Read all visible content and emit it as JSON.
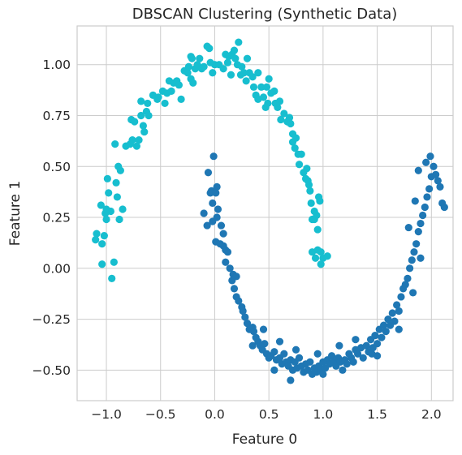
{
  "chart_data": {
    "type": "scatter",
    "title": "DBSCAN Clustering (Synthetic Data)",
    "xlabel": "Feature 0",
    "ylabel": "Feature 1",
    "xlim": [
      -1.27,
      2.2
    ],
    "ylim": [
      -0.65,
      1.19
    ],
    "xticks": [
      -1.0,
      -0.5,
      0.0,
      0.5,
      1.0,
      1.5,
      2.0
    ],
    "xtick_labels": [
      "−1.0",
      "−0.5",
      "0.0",
      "0.5",
      "1.0",
      "1.5",
      "2.0"
    ],
    "yticks": [
      -0.5,
      -0.25,
      0.0,
      0.25,
      0.5,
      0.75,
      1.0
    ],
    "ytick_labels": [
      "−0.50",
      "−0.25",
      "0.00",
      "0.25",
      "0.50",
      "0.75",
      "1.00"
    ],
    "grid": true,
    "colors": {
      "cluster_0": "#1f77b4",
      "cluster_1": "#17becf"
    },
    "series": [
      {
        "color": "#17becf",
        "points": [
          [
            -1.1,
            0.14
          ],
          [
            -1.09,
            0.17
          ],
          [
            -1.05,
            0.31
          ],
          [
            -1.04,
            0.12
          ],
          [
            -1.04,
            0.02
          ],
          [
            -1.02,
            0.16
          ],
          [
            -1.01,
            0.27
          ],
          [
            -1.0,
            0.29
          ],
          [
            -1.0,
            0.24
          ],
          [
            -0.99,
            0.44
          ],
          [
            -0.98,
            0.37
          ],
          [
            -0.96,
            0.28
          ],
          [
            -0.95,
            -0.05
          ],
          [
            -0.93,
            0.03
          ],
          [
            -0.92,
            0.61
          ],
          [
            -0.91,
            0.42
          ],
          [
            -0.9,
            0.35
          ],
          [
            -0.89,
            0.5
          ],
          [
            -0.88,
            0.24
          ],
          [
            -0.87,
            0.48
          ],
          [
            -0.85,
            0.29
          ],
          [
            -0.82,
            0.6
          ],
          [
            -0.78,
            0.61
          ],
          [
            -0.76,
            0.63
          ],
          [
            -0.77,
            0.73
          ],
          [
            -0.74,
            0.72
          ],
          [
            -0.72,
            0.6
          ],
          [
            -0.7,
            0.63
          ],
          [
            -0.68,
            0.75
          ],
          [
            -0.68,
            0.82
          ],
          [
            -0.66,
            0.7
          ],
          [
            -0.65,
            0.67
          ],
          [
            -0.63,
            0.77
          ],
          [
            -0.62,
            0.81
          ],
          [
            -0.61,
            0.75
          ],
          [
            -0.57,
            0.85
          ],
          [
            -0.53,
            0.83
          ],
          [
            -0.52,
            0.84
          ],
          [
            -0.48,
            0.87
          ],
          [
            -0.46,
            0.81
          ],
          [
            -0.44,
            0.86
          ],
          [
            -0.42,
            0.92
          ],
          [
            -0.4,
            0.87
          ],
          [
            -0.38,
            0.91
          ],
          [
            -0.35,
            0.92
          ],
          [
            -0.33,
            0.9
          ],
          [
            -0.31,
            0.83
          ],
          [
            -0.28,
            0.97
          ],
          [
            -0.25,
            0.96
          ],
          [
            -0.24,
            0.99
          ],
          [
            -0.22,
            1.04
          ],
          [
            -0.21,
            1.03
          ],
          [
            -0.22,
            0.93
          ],
          [
            -0.2,
            0.91
          ],
          [
            -0.18,
            0.98
          ],
          [
            -0.16,
            1.0
          ],
          [
            -0.14,
            1.03
          ],
          [
            -0.12,
            0.98
          ],
          [
            -0.1,
            0.99
          ],
          [
            -0.07,
            1.09
          ],
          [
            -0.05,
            1.08
          ],
          [
            -0.04,
            1.01
          ],
          [
            -0.02,
            0.96
          ],
          [
            0.0,
            1.0
          ],
          [
            0.04,
            1.0
          ],
          [
            0.08,
            0.98
          ],
          [
            0.1,
            1.05
          ],
          [
            0.12,
            1.01
          ],
          [
            0.13,
            1.04
          ],
          [
            0.15,
            0.95
          ],
          [
            0.16,
            1.05
          ],
          [
            0.18,
            1.07
          ],
          [
            0.19,
            1.03
          ],
          [
            0.21,
            1.0
          ],
          [
            0.22,
            1.11
          ],
          [
            0.24,
            0.95
          ],
          [
            0.25,
            0.99
          ],
          [
            0.27,
            0.96
          ],
          [
            0.29,
            0.92
          ],
          [
            0.3,
            1.03
          ],
          [
            0.32,
            0.96
          ],
          [
            0.35,
            0.94
          ],
          [
            0.36,
            0.89
          ],
          [
            0.38,
            0.85
          ],
          [
            0.4,
            0.83
          ],
          [
            0.4,
            0.96
          ],
          [
            0.43,
            0.89
          ],
          [
            0.45,
            0.84
          ],
          [
            0.47,
            0.79
          ],
          [
            0.48,
            0.89
          ],
          [
            0.49,
            0.81
          ],
          [
            0.5,
            0.93
          ],
          [
            0.52,
            0.86
          ],
          [
            0.55,
            0.87
          ],
          [
            0.56,
            0.81
          ],
          [
            0.58,
            0.79
          ],
          [
            0.6,
            0.82
          ],
          [
            0.61,
            0.73
          ],
          [
            0.64,
            0.76
          ],
          [
            0.67,
            0.72
          ],
          [
            0.69,
            0.74
          ],
          [
            0.7,
            0.71
          ],
          [
            0.72,
            0.66
          ],
          [
            0.72,
            0.62
          ],
          [
            0.74,
            0.59
          ],
          [
            0.75,
            0.64
          ],
          [
            0.77,
            0.56
          ],
          [
            0.78,
            0.51
          ],
          [
            0.8,
            0.56
          ],
          [
            0.82,
            0.47
          ],
          [
            0.85,
            0.49
          ],
          [
            0.84,
            0.44
          ],
          [
            0.87,
            0.41
          ],
          [
            0.88,
            0.38
          ],
          [
            0.89,
            0.32
          ],
          [
            0.9,
            0.24
          ],
          [
            0.92,
            0.24
          ],
          [
            0.94,
            0.26
          ],
          [
            0.95,
            0.19
          ],
          [
            0.97,
            0.33
          ],
          [
            0.9,
            0.08
          ],
          [
            0.93,
            0.05
          ],
          [
            0.95,
            0.09
          ],
          [
            0.98,
            0.08
          ],
          [
            1.0,
            0.05
          ],
          [
            0.98,
            0.02
          ],
          [
            1.04,
            0.06
          ],
          [
            0.92,
            0.28
          ],
          [
            0.96,
            0.35
          ],
          [
            0.86,
            0.43
          ]
        ]
      },
      {
        "color": "#1f77b4",
        "points": [
          [
            -0.01,
            0.55
          ],
          [
            -0.06,
            0.47
          ],
          [
            -0.04,
            0.37
          ],
          [
            -0.03,
            0.38
          ],
          [
            -0.1,
            0.27
          ],
          [
            -0.07,
            0.21
          ],
          [
            -0.02,
            0.32
          ],
          [
            0.01,
            0.37
          ],
          [
            0.02,
            0.4
          ],
          [
            0.03,
            0.29
          ],
          [
            -0.02,
            0.23
          ],
          [
            0.02,
            0.25
          ],
          [
            0.06,
            0.21
          ],
          [
            0.08,
            0.17
          ],
          [
            0.01,
            0.13
          ],
          [
            0.05,
            0.12
          ],
          [
            0.08,
            0.11
          ],
          [
            0.1,
            0.09
          ],
          [
            0.12,
            0.08
          ],
          [
            0.1,
            0.03
          ],
          [
            0.14,
            0.0
          ],
          [
            0.17,
            -0.03
          ],
          [
            0.2,
            -0.04
          ],
          [
            0.16,
            -0.06
          ],
          [
            0.18,
            -0.1
          ],
          [
            0.2,
            -0.14
          ],
          [
            0.22,
            -0.16
          ],
          [
            0.25,
            -0.19
          ],
          [
            0.26,
            -0.21
          ],
          [
            0.28,
            -0.24
          ],
          [
            0.3,
            -0.27
          ],
          [
            0.32,
            -0.3
          ],
          [
            0.35,
            -0.29
          ],
          [
            0.36,
            -0.31
          ],
          [
            0.38,
            -0.34
          ],
          [
            0.4,
            -0.36
          ],
          [
            0.42,
            -0.38
          ],
          [
            0.44,
            -0.4
          ],
          [
            0.46,
            -0.37
          ],
          [
            0.48,
            -0.42
          ],
          [
            0.5,
            -0.44
          ],
          [
            0.52,
            -0.43
          ],
          [
            0.55,
            -0.41
          ],
          [
            0.57,
            -0.45
          ],
          [
            0.6,
            -0.44
          ],
          [
            0.62,
            -0.47
          ],
          [
            0.64,
            -0.42
          ],
          [
            0.66,
            -0.46
          ],
          [
            0.68,
            -0.48
          ],
          [
            0.7,
            -0.45
          ],
          [
            0.72,
            -0.5
          ],
          [
            0.74,
            -0.46
          ],
          [
            0.76,
            -0.49
          ],
          [
            0.78,
            -0.44
          ],
          [
            0.8,
            -0.48
          ],
          [
            0.82,
            -0.51
          ],
          [
            0.84,
            -0.47
          ],
          [
            0.86,
            -0.5
          ],
          [
            0.88,
            -0.46
          ],
          [
            0.9,
            -0.52
          ],
          [
            0.92,
            -0.49
          ],
          [
            0.94,
            -0.51
          ],
          [
            0.96,
            -0.48
          ],
          [
            0.98,
            -0.5
          ],
          [
            1.0,
            -0.46
          ],
          [
            1.02,
            -0.49
          ],
          [
            1.04,
            -0.45
          ],
          [
            1.06,
            -0.47
          ],
          [
            1.08,
            -0.43
          ],
          [
            1.1,
            -0.46
          ],
          [
            1.12,
            -0.48
          ],
          [
            1.14,
            -0.44
          ],
          [
            1.16,
            -0.46
          ],
          [
            1.18,
            -0.5
          ],
          [
            1.2,
            -0.45
          ],
          [
            1.22,
            -0.47
          ],
          [
            1.24,
            -0.42
          ],
          [
            1.26,
            -0.44
          ],
          [
            1.28,
            -0.46
          ],
          [
            1.3,
            -0.4
          ],
          [
            1.32,
            -0.42
          ],
          [
            1.35,
            -0.39
          ],
          [
            1.37,
            -0.44
          ],
          [
            1.4,
            -0.38
          ],
          [
            1.42,
            -0.41
          ],
          [
            1.44,
            -0.35
          ],
          [
            1.46,
            -0.39
          ],
          [
            1.48,
            -0.33
          ],
          [
            1.5,
            -0.37
          ],
          [
            1.52,
            -0.3
          ],
          [
            1.54,
            -0.34
          ],
          [
            1.56,
            -0.28
          ],
          [
            1.58,
            -0.31
          ],
          [
            1.6,
            -0.25
          ],
          [
            1.62,
            -0.28
          ],
          [
            1.64,
            -0.22
          ],
          [
            1.66,
            -0.26
          ],
          [
            1.68,
            -0.18
          ],
          [
            1.7,
            -0.21
          ],
          [
            1.72,
            -0.14
          ],
          [
            1.74,
            -0.1
          ],
          [
            1.76,
            -0.08
          ],
          [
            1.78,
            -0.05
          ],
          [
            1.8,
            0.0
          ],
          [
            1.82,
            0.04
          ],
          [
            1.84,
            0.08
          ],
          [
            1.86,
            0.12
          ],
          [
            1.88,
            0.18
          ],
          [
            1.9,
            0.22
          ],
          [
            1.92,
            0.26
          ],
          [
            1.94,
            0.3
          ],
          [
            1.96,
            0.35
          ],
          [
            1.98,
            0.39
          ],
          [
            2.0,
            0.45
          ],
          [
            2.02,
            0.5
          ],
          [
            2.04,
            0.46
          ],
          [
            2.06,
            0.43
          ],
          [
            2.08,
            0.4
          ],
          [
            2.1,
            0.32
          ],
          [
            2.12,
            0.3
          ],
          [
            1.95,
            0.52
          ],
          [
            1.88,
            0.48
          ],
          [
            1.99,
            0.55
          ],
          [
            1.85,
            0.33
          ],
          [
            1.79,
            0.2
          ],
          [
            1.9,
            0.05
          ],
          [
            1.83,
            -0.12
          ],
          [
            1.7,
            -0.3
          ],
          [
            1.5,
            -0.43
          ],
          [
            1.3,
            -0.35
          ],
          [
            1.15,
            -0.38
          ],
          [
            0.95,
            -0.42
          ],
          [
            0.75,
            -0.4
          ],
          [
            0.6,
            -0.36
          ],
          [
            0.45,
            -0.3
          ],
          [
            0.35,
            -0.38
          ],
          [
            0.55,
            -0.5
          ],
          [
            0.7,
            -0.55
          ],
          [
            1.0,
            -0.52
          ],
          [
            1.45,
            -0.42
          ]
        ]
      }
    ]
  }
}
